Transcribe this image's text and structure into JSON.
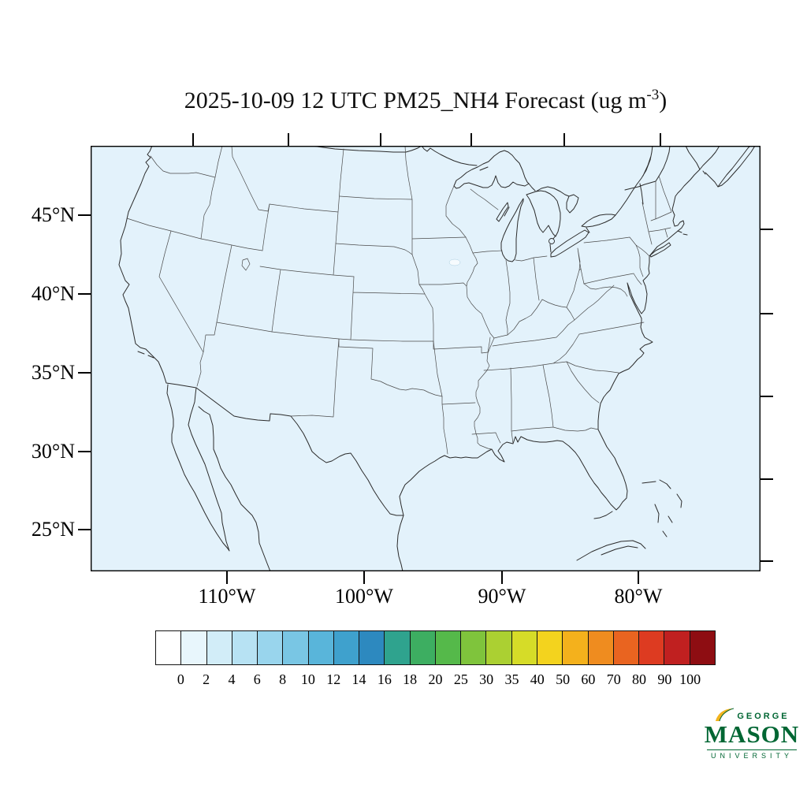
{
  "title": {
    "prefix": "2025-10-09 12 UTC PM25_NH4 Forecast (ug m",
    "exponent": "-3",
    "suffix": ")"
  },
  "axes": {
    "lat_labels": [
      "45°N",
      "40°N",
      "35°N",
      "30°N",
      "25°N"
    ],
    "lon_labels": [
      "110°W",
      "100°W",
      "90°W",
      "80°W"
    ]
  },
  "chart_data": {
    "type": "heatmap",
    "title": "2025-10-09 12 UTC PM25_NH4 Forecast (ug m^-3)",
    "variable": "PM25_NH4",
    "units": "ug m^-3",
    "forecast_time": "2025-10-09 12 UTC",
    "region": "Continental United States with surrounding coastlines (Canada, Mexico, Gulf of Mexico, Atlantic)",
    "lat_ticks_deg_n": [
      45,
      40,
      35,
      30,
      25
    ],
    "lon_ticks_deg_w": [
      110,
      100,
      90,
      80
    ],
    "grid": "off",
    "legend_position": "horizontal colorbar below map",
    "colorbar": {
      "orientation": "horizontal",
      "levels": [
        0,
        2,
        4,
        6,
        8,
        10,
        12,
        14,
        16,
        18,
        20,
        25,
        30,
        35,
        40,
        50,
        60,
        70,
        80,
        90,
        100
      ],
      "colors": [
        "#ffffff",
        "#e8f6fc",
        "#d2edf8",
        "#b7e2f3",
        "#99d5ed",
        "#79c6e4",
        "#59b5da",
        "#3fa1cd",
        "#2d89bf",
        "#2fa38e",
        "#3dae61",
        "#55b94a",
        "#7fc43c",
        "#abd032",
        "#d6dc28",
        "#f3d31e",
        "#f4b11c",
        "#ef8c1f",
        "#e96420",
        "#dd3b21",
        "#c02020",
        "#8e0d12"
      ]
    },
    "field_reading": "Entire mapped domain is rendered in the lowest concentration bins (uniform pale blue, values below ~2 ug m^-3); no elevated PM25_NH4 plumes visible."
  },
  "colors": {
    "map_fill": "#e3f2fb",
    "coastline": "#2b2b2b",
    "state_border": "#4a4a4a",
    "frame": "#000000",
    "text": "#000000",
    "logo_green": "#006633",
    "logo_gold": "#f2b31d"
  },
  "logo": {
    "top": "GEORGE",
    "main": "MASON",
    "bottom": "UNIVERSITY"
  }
}
